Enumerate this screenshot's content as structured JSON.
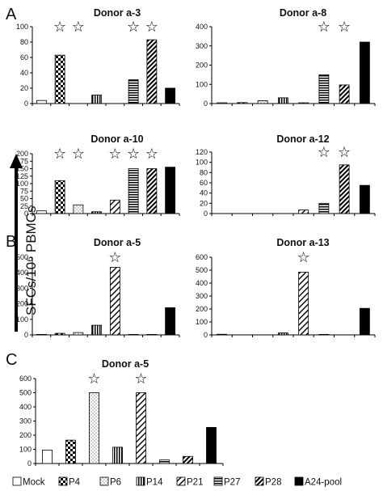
{
  "figure": {
    "panel_letters": [
      "A",
      "B",
      "C"
    ],
    "ylabel": "SFCs/10⁶ PBMCs",
    "legend": [
      "Mock",
      "P4",
      "P6",
      "P14",
      "P21",
      "P27",
      "P28",
      "A24-pool"
    ],
    "star_glyph": "☆"
  },
  "chart_data": [
    {
      "type": "bar",
      "title": "Donor a-3",
      "categories": [
        "Mock",
        "P4",
        "P6",
        "P14",
        "P21",
        "P27",
        "P28",
        "A24-pool"
      ],
      "values": [
        4,
        63,
        0,
        11,
        0,
        31,
        83,
        20
      ],
      "ylim": [
        0,
        100
      ],
      "yticks": [
        0,
        20,
        40,
        60,
        80,
        100
      ],
      "stars": [
        "P4",
        "P6",
        "P27",
        "P28"
      ]
    },
    {
      "type": "bar",
      "title": "Donor a-8",
      "categories": [
        "Mock",
        "P4",
        "P6",
        "P14",
        "P21",
        "P27",
        "P28",
        "A24-pool"
      ],
      "values": [
        4,
        5,
        15,
        30,
        4,
        150,
        97,
        320
      ],
      "ylim": [
        0,
        400
      ],
      "yticks": [
        0,
        100,
        200,
        300,
        400
      ],
      "stars": [
        "P27",
        "P28"
      ]
    },
    {
      "type": "bar",
      "title": "Donor a-10",
      "categories": [
        "Mock",
        "P4",
        "P6",
        "P14",
        "P21",
        "P27",
        "P28",
        "A24-pool"
      ],
      "values": [
        9,
        110,
        29,
        6,
        45,
        150,
        150,
        155
      ],
      "ylim": [
        0,
        200
      ],
      "yticks": [
        0,
        25,
        50,
        75,
        100,
        125,
        150,
        175,
        200
      ],
      "stars": [
        "P4",
        "P6",
        "P27",
        "P28",
        "P21"
      ]
    },
    {
      "type": "bar",
      "title": "Donor a-12",
      "categories": [
        "Mock",
        "P4",
        "P6",
        "P14",
        "P21",
        "P27",
        "P28",
        "A24-pool"
      ],
      "values": [
        0,
        0,
        0,
        0,
        7,
        20,
        95,
        55
      ],
      "ylim": [
        0,
        120
      ],
      "yticks": [
        0,
        20,
        40,
        60,
        80,
        100,
        120
      ],
      "stars": [
        "P27",
        "P28"
      ]
    },
    {
      "type": "bar",
      "title": "Donor a-5",
      "categories": [
        "Mock",
        "P4",
        "P6",
        "P14",
        "P21",
        "P27",
        "P28",
        "A24-pool"
      ],
      "values": [
        3,
        10,
        15,
        62,
        435,
        3,
        3,
        175
      ],
      "ylim": [
        0,
        500
      ],
      "yticks": [
        0,
        100,
        200,
        300,
        400,
        500
      ],
      "stars": [
        "P21"
      ]
    },
    {
      "type": "bar",
      "title": "Donor a-13",
      "categories": [
        "Mock",
        "P4",
        "P6",
        "P14",
        "P21",
        "P27",
        "P28",
        "A24-pool"
      ],
      "values": [
        5,
        0,
        0,
        15,
        485,
        4,
        0,
        205
      ],
      "ylim": [
        0,
        600
      ],
      "yticks": [
        0,
        100,
        200,
        300,
        400,
        500,
        600
      ],
      "stars": [
        "P21"
      ]
    },
    {
      "type": "bar",
      "title": "Donor a-5",
      "categories": [
        "Mock",
        "P4",
        "P6",
        "P14",
        "P21",
        "P27",
        "P28",
        "A24-pool"
      ],
      "values": [
        95,
        165,
        500,
        115,
        500,
        25,
        50,
        255
      ],
      "ylim": [
        0,
        600
      ],
      "yticks": [
        0,
        100,
        200,
        300,
        400,
        500,
        600
      ],
      "stars": [
        "P6",
        "P21"
      ]
    }
  ]
}
